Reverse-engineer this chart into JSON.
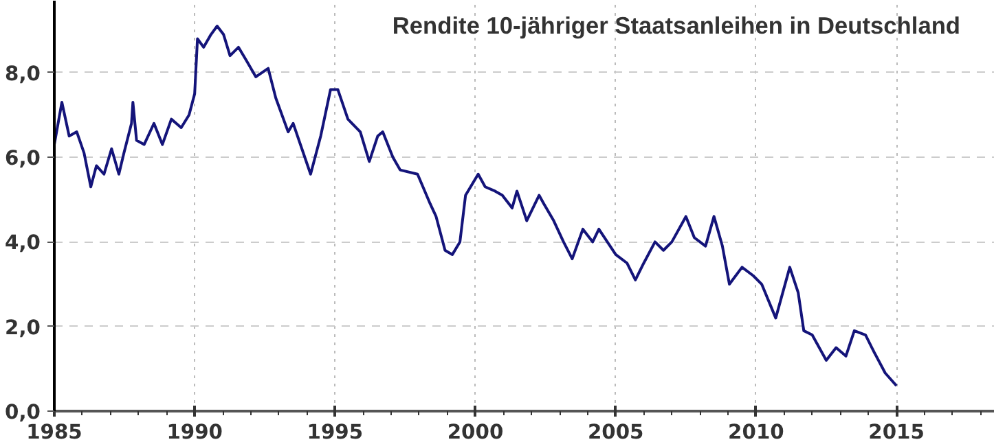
{
  "chart_data": {
    "type": "line",
    "title": "Rendite 10-jähriger Staatsanleihen in Deutschland",
    "x": [
      1985.0,
      1985.27,
      1985.53,
      1985.8,
      1986.06,
      1986.3,
      1986.5,
      1986.77,
      1987.04,
      1987.3,
      1987.48,
      1987.75,
      1987.8,
      1987.93,
      1988.2,
      1988.55,
      1988.85,
      1989.17,
      1989.52,
      1989.8,
      1990.0,
      1990.1,
      1990.32,
      1990.58,
      1990.8,
      1991.03,
      1991.26,
      1991.56,
      1991.83,
      1992.18,
      1992.62,
      1992.89,
      1993.33,
      1993.51,
      1994.13,
      1994.49,
      1994.84,
      1995.1,
      1995.46,
      1995.9,
      1996.22,
      1996.52,
      1996.7,
      1997.06,
      1997.32,
      1997.94,
      1998.39,
      1998.6,
      1998.92,
      1999.18,
      1999.45,
      1999.65,
      2000.1,
      2000.35,
      2000.7,
      2000.96,
      2001.31,
      2001.48,
      2001.83,
      2002.27,
      2002.44,
      2002.79,
      2003.14,
      2003.45,
      2003.83,
      2004.18,
      2004.4,
      2005.0,
      2005.4,
      2005.7,
      2006.0,
      2006.4,
      2006.7,
      2007.0,
      2007.5,
      2007.8,
      2008.2,
      2008.5,
      2008.8,
      2009.05,
      2009.5,
      2009.9,
      2010.2,
      2010.7,
      2011.2,
      2011.5,
      2011.7,
      2012.0,
      2012.5,
      2012.85,
      2013.2,
      2013.5,
      2013.9,
      2014.2,
      2014.6,
      2015.0
    ],
    "series": [
      {
        "color": "#14147a",
        "values": [
          6.3,
          7.3,
          6.5,
          6.6,
          6.1,
          5.3,
          5.8,
          5.6,
          6.2,
          5.6,
          6.1,
          6.8,
          7.3,
          6.4,
          6.3,
          6.8,
          6.3,
          6.9,
          6.7,
          7.0,
          7.5,
          8.8,
          8.6,
          8.9,
          9.1,
          8.9,
          8.4,
          8.6,
          8.3,
          7.9,
          8.1,
          7.4,
          6.6,
          6.8,
          5.6,
          6.5,
          7.6,
          7.6,
          6.9,
          6.6,
          5.9,
          6.5,
          6.6,
          6.0,
          5.7,
          5.6,
          4.9,
          4.6,
          3.8,
          3.7,
          4.0,
          5.1,
          5.6,
          5.3,
          5.2,
          5.1,
          4.8,
          5.2,
          4.5,
          5.1,
          4.9,
          4.5,
          4.0,
          3.6,
          4.3,
          4.0,
          4.3,
          3.7,
          3.5,
          3.1,
          3.5,
          4.0,
          3.8,
          4.0,
          4.6,
          4.1,
          3.9,
          4.6,
          3.9,
          3.0,
          3.4,
          3.2,
          3.0,
          2.2,
          3.4,
          2.8,
          1.9,
          1.8,
          1.2,
          1.5,
          1.3,
          1.9,
          1.8,
          1.4,
          0.9,
          0.6
        ]
      }
    ],
    "xlim": [
      1985,
      2018.5
    ],
    "xticks": [
      1985,
      1990,
      1995,
      2000,
      2005,
      2010,
      2015
    ],
    "ylim": [
      0,
      9.7
    ],
    "yticks": [
      {
        "value": 0,
        "label": "0,0"
      },
      {
        "value": 2,
        "label": "2,0"
      },
      {
        "value": 4,
        "label": "4,0"
      },
      {
        "value": 6,
        "label": "6,0"
      },
      {
        "value": 8,
        "label": "8,0"
      }
    ],
    "grid": true,
    "line_style": "solid"
  }
}
